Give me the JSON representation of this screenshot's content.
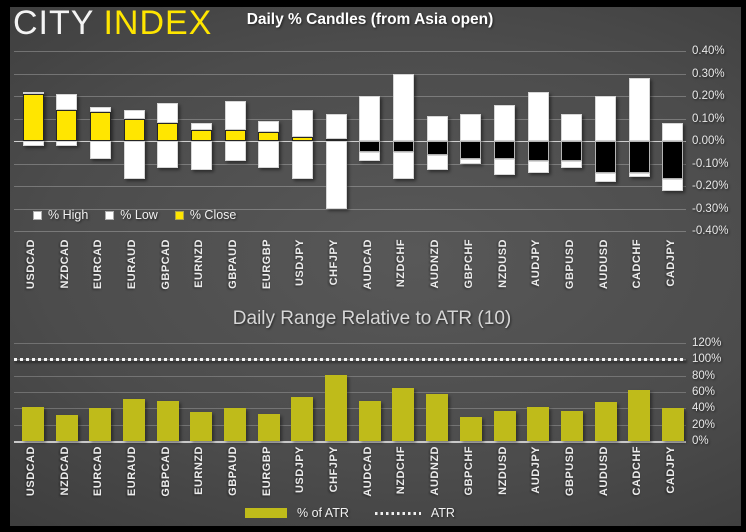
{
  "logo": {
    "city": "CITY",
    "index": "INDEX",
    "city_color": "#f4f4f4",
    "index_color": "#ffe600"
  },
  "colors": {
    "close_positive": "#ffe600",
    "close_negative": "#000000",
    "high_low": "#ffffff",
    "atr_bar": "#bfbb1a",
    "background_center": "#4c4c4c",
    "background_edge": "#252525"
  },
  "chart_data": [
    {
      "type": "bar",
      "subtype": "stacked-candle",
      "title": "Daily % Candles (from Asia open)",
      "categories": [
        "USDCAD",
        "NZDCAD",
        "EURCAD",
        "EURAUD",
        "GBPCAD",
        "EURNZD",
        "GBPAUD",
        "EURGBP",
        "USDJPY",
        "CHFJPY",
        "AUDCAD",
        "NZDCHF",
        "AUDNZD",
        "GBPCHF",
        "NZDUSD",
        "AUDJPY",
        "GBPUSD",
        "AUDUSD",
        "CADCHF",
        "CADJPY"
      ],
      "series": [
        {
          "name": "% High",
          "color": "#ffffff",
          "values": [
            0.22,
            0.21,
            0.15,
            0.14,
            0.17,
            0.08,
            0.18,
            0.09,
            0.14,
            0.12,
            0.2,
            0.3,
            0.11,
            0.12,
            0.16,
            0.22,
            0.12,
            0.2,
            0.28,
            0.08
          ]
        },
        {
          "name": "% Low",
          "color": "#ffffff",
          "values": [
            -0.02,
            -0.02,
            -0.08,
            -0.17,
            -0.12,
            -0.13,
            -0.09,
            -0.12,
            -0.17,
            -0.3,
            -0.09,
            -0.17,
            -0.13,
            -0.1,
            -0.15,
            -0.14,
            -0.12,
            -0.18,
            -0.16,
            -0.22
          ]
        },
        {
          "name": "% Close",
          "color": "#ffe600",
          "negative_color": "#000000",
          "values": [
            0.21,
            0.14,
            0.13,
            0.1,
            0.08,
            0.05,
            0.05,
            0.04,
            0.02,
            0.01,
            -0.05,
            -0.05,
            -0.06,
            -0.08,
            -0.08,
            -0.09,
            -0.09,
            -0.14,
            -0.14,
            -0.17
          ]
        }
      ],
      "ylim": [
        -0.4,
        0.4
      ],
      "y_tick_step": 0.1,
      "y_ticks": [
        "0.40%",
        "0.30%",
        "0.20%",
        "0.10%",
        "0.00%",
        "-0.10%",
        "-0.20%",
        "-0.30%",
        "-0.40%"
      ],
      "grid": true,
      "legend_position": "bottom-left"
    },
    {
      "type": "bar",
      "title": "Daily Range Relative to ATR (10)",
      "categories": [
        "USDCAD",
        "NZDCAD",
        "EURCAD",
        "EURAUD",
        "GBPCAD",
        "EURNZD",
        "GBPAUD",
        "EURGBP",
        "USDJPY",
        "CHFJPY",
        "AUDCAD",
        "NZDCHF",
        "AUDNZD",
        "GBPCHF",
        "NZDUSD",
        "AUDJPY",
        "GBPUSD",
        "AUDUSD",
        "CADCHF",
        "CADJPY"
      ],
      "series": [
        {
          "name": "% of ATR",
          "color": "#bfbb1a",
          "values": [
            42,
            32,
            40,
            51,
            49,
            35,
            41,
            33,
            54,
            81,
            49,
            65,
            58,
            30,
            37,
            42,
            37,
            48,
            62,
            41
          ]
        }
      ],
      "reference_line": {
        "label": "ATR",
        "value": 100,
        "style": "dotted",
        "color": "#f0f0f0"
      },
      "ylim": [
        0,
        120
      ],
      "y_tick_step": 20,
      "y_ticks": [
        "120%",
        "100%",
        "80%",
        "60%",
        "40%",
        "20%",
        "0%"
      ],
      "grid": true,
      "legend_position": "bottom-center"
    }
  ]
}
